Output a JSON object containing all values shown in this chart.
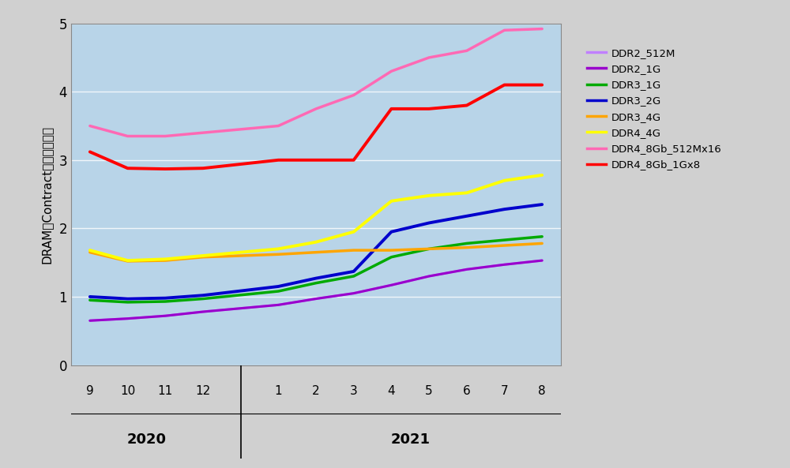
{
  "ylabel": "DRAMのContract価格（ドル）",
  "outer_background": "#D0D0D0",
  "plot_bg": "#B8D4E8",
  "ylim": [
    0,
    5
  ],
  "yticks": [
    0,
    1,
    2,
    3,
    4,
    5
  ],
  "x_labels_2020": [
    "9",
    "10",
    "11",
    "12"
  ],
  "x_labels_2021": [
    "1",
    "2",
    "3",
    "4",
    "5",
    "6",
    "7",
    "8"
  ],
  "series": {
    "DDR2_512M": {
      "color": "#C080FF",
      "linewidth": 2.2,
      "values_2020": [
        0.65,
        0.68,
        0.72,
        0.78
      ],
      "values_2021": [
        0.88,
        0.97,
        1.05,
        1.17,
        1.3,
        1.4,
        1.47,
        1.53
      ]
    },
    "DDR2_1G": {
      "color": "#9900CC",
      "linewidth": 2.2,
      "values_2020": [
        0.65,
        0.68,
        0.72,
        0.78
      ],
      "values_2021": [
        0.88,
        0.97,
        1.05,
        1.17,
        1.3,
        1.4,
        1.47,
        1.53
      ]
    },
    "DDR3_1G": {
      "color": "#00AA00",
      "linewidth": 2.5,
      "values_2020": [
        0.95,
        0.92,
        0.93,
        0.97
      ],
      "values_2021": [
        1.08,
        1.2,
        1.3,
        1.58,
        1.7,
        1.78,
        1.83,
        1.88
      ]
    },
    "DDR3_2G": {
      "color": "#0000CC",
      "linewidth": 2.8,
      "values_2020": [
        1.0,
        0.97,
        0.98,
        1.02
      ],
      "values_2021": [
        1.15,
        1.27,
        1.37,
        1.95,
        2.08,
        2.18,
        2.28,
        2.35
      ]
    },
    "DDR3_4G": {
      "color": "#FFA500",
      "linewidth": 2.5,
      "values_2020": [
        1.65,
        1.52,
        1.53,
        1.58
      ],
      "values_2021": [
        1.62,
        1.65,
        1.68,
        1.68,
        1.7,
        1.72,
        1.75,
        1.78
      ]
    },
    "DDR4_4G": {
      "color": "#FFFF00",
      "linewidth": 2.8,
      "values_2020": [
        1.68,
        1.53,
        1.55,
        1.6
      ],
      "values_2021": [
        1.7,
        1.8,
        1.95,
        2.4,
        2.48,
        2.52,
        2.7,
        2.78
      ]
    },
    "DDR4_8Gb_512Mx16": {
      "color": "#FF69B4",
      "linewidth": 2.5,
      "values_2020": [
        3.5,
        3.35,
        3.35,
        3.4
      ],
      "values_2021": [
        3.5,
        3.75,
        3.95,
        4.3,
        4.5,
        4.6,
        4.9,
        4.92
      ]
    },
    "DDR4_8Gb_1Gx8": {
      "color": "#FF0000",
      "linewidth": 2.8,
      "values_2020": [
        3.12,
        2.88,
        2.87,
        2.88
      ],
      "values_2021": [
        3.0,
        3.0,
        3.0,
        3.75,
        3.75,
        3.8,
        4.1,
        4.1
      ]
    }
  },
  "legend_order": [
    "DDR2_512M",
    "DDR2_1G",
    "DDR3_1G",
    "DDR3_2G",
    "DDR3_4G",
    "DDR4_4G",
    "DDR4_8Gb_512Mx16",
    "DDR4_8Gb_1Gx8"
  ],
  "legend_colors": {
    "DDR2_512M": "#C080FF",
    "DDR2_1G": "#9900CC",
    "DDR3_1G": "#00AA00",
    "DDR3_2G": "#0000CC",
    "DDR3_4G": "#FFA500",
    "DDR4_4G": "#FFFF00",
    "DDR4_8Gb_512Mx16": "#FF69B4",
    "DDR4_8Gb_1Gx8": "#FF0000"
  }
}
